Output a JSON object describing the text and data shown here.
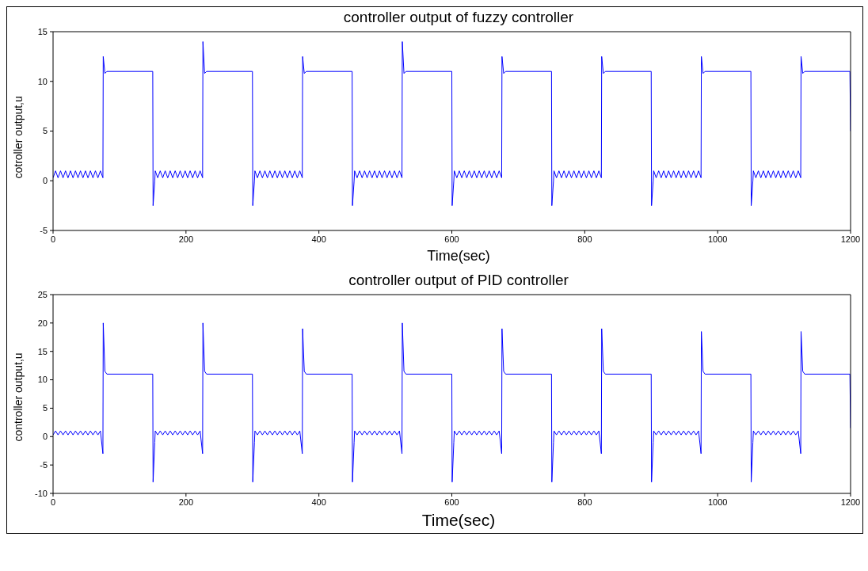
{
  "chart_data": [
    {
      "type": "line",
      "title": "controller output of fuzzy controller",
      "xlabel": "Time(sec)",
      "ylabel": "cotroller output,u",
      "xlim": [
        0,
        1200
      ],
      "xticks": [
        0,
        200,
        400,
        600,
        800,
        1000,
        1200
      ],
      "ylim": [
        -5,
        15
      ],
      "yticks": [
        -5,
        0,
        5,
        10,
        15
      ],
      "x": [
        0,
        3.75,
        7.5,
        11.25,
        15,
        18.75,
        22.5,
        26.25,
        30,
        33.75,
        37.5,
        41.25,
        45,
        48.75,
        52.5,
        56.25,
        60,
        63.75,
        67.5,
        71.25,
        75,
        75.5,
        78,
        81,
        150,
        150.5,
        153,
        153.75,
        157.5,
        161.25,
        165,
        168.75,
        172.5,
        176.25,
        180,
        183.75,
        187.5,
        191.25,
        195,
        198.75,
        202.5,
        206.25,
        210,
        213.75,
        217.5,
        221.25,
        225,
        225.5,
        228,
        231,
        300,
        300.5,
        303,
        303.75,
        307.5,
        311.25,
        315,
        318.75,
        322.5,
        326.25,
        330,
        333.75,
        337.5,
        341.25,
        345,
        348.75,
        352.5,
        356.25,
        360,
        363.75,
        367.5,
        371.25,
        375,
        375.5,
        378,
        381,
        450,
        450.5,
        453,
        453.75,
        457.5,
        461.25,
        465,
        468.75,
        472.5,
        476.25,
        480,
        483.75,
        487.5,
        491.25,
        495,
        498.75,
        502.5,
        506.25,
        510,
        513.75,
        517.5,
        521.25,
        525,
        525.5,
        528,
        531,
        600,
        600.5,
        603,
        603.75,
        607.5,
        611.25,
        615,
        618.75,
        622.5,
        626.25,
        630,
        633.75,
        637.5,
        641.25,
        645,
        648.75,
        652.5,
        656.25,
        660,
        663.75,
        667.5,
        671.25,
        675,
        675.5,
        678,
        681,
        750,
        750.5,
        753,
        753.75,
        757.5,
        761.25,
        765,
        768.75,
        772.5,
        776.25,
        780,
        783.75,
        787.5,
        791.25,
        795,
        798.75,
        802.5,
        806.25,
        810,
        813.75,
        817.5,
        821.25,
        825,
        825.5,
        828,
        831,
        900,
        900.5,
        903,
        903.75,
        907.5,
        911.25,
        915,
        918.75,
        922.5,
        926.25,
        930,
        933.75,
        937.5,
        941.25,
        945,
        948.75,
        952.5,
        956.25,
        960,
        963.75,
        967.5,
        971.25,
        975,
        975.5,
        978,
        981,
        1050,
        1050.5,
        1053,
        1053.75,
        1057.5,
        1061.25,
        1065,
        1068.75,
        1072.5,
        1076.25,
        1080,
        1083.75,
        1087.5,
        1091.25,
        1095,
        1098.75,
        1102.5,
        1106.25,
        1110,
        1113.75,
        1117.5,
        1121.25,
        1125,
        1125.5,
        1128,
        1131,
        1199,
        1200
      ],
      "series": [
        {
          "color": "#0000ff",
          "values": [
            0.3,
            1,
            0.3,
            1,
            0.3,
            1,
            0.3,
            1,
            0.3,
            1,
            0.3,
            1,
            0.3,
            1,
            0.3,
            1,
            0.3,
            1,
            0.3,
            1,
            0.3,
            12.5,
            10.8,
            11,
            11,
            -2.5,
            0,
            1,
            0.3,
            1,
            0.3,
            1,
            0.3,
            1,
            0.3,
            1,
            0.3,
            1,
            0.3,
            1,
            0.3,
            1,
            0.3,
            1,
            0.3,
            1,
            0.3,
            14,
            10.8,
            11,
            11,
            -2.5,
            0,
            1,
            0.3,
            1,
            0.3,
            1,
            0.3,
            1,
            0.3,
            1,
            0.3,
            1,
            0.3,
            1,
            0.3,
            1,
            0.3,
            1,
            0.3,
            1,
            0.3,
            12.5,
            10.8,
            11,
            11,
            -2.5,
            0,
            1,
            0.3,
            1,
            0.3,
            1,
            0.3,
            1,
            0.3,
            1,
            0.3,
            1,
            0.3,
            1,
            0.3,
            1,
            0.3,
            1,
            0.3,
            1,
            0.3,
            14,
            10.8,
            11,
            11,
            -2.5,
            0,
            1,
            0.3,
            1,
            0.3,
            1,
            0.3,
            1,
            0.3,
            1,
            0.3,
            1,
            0.3,
            1,
            0.3,
            1,
            0.3,
            1,
            0.3,
            1,
            0.3,
            12.5,
            10.8,
            11,
            11,
            -2.5,
            0,
            1,
            0.3,
            1,
            0.3,
            1,
            0.3,
            1,
            0.3,
            1,
            0.3,
            1,
            0.3,
            1,
            0.3,
            1,
            0.3,
            1,
            0.3,
            1,
            0.3,
            12.5,
            10.8,
            11,
            11,
            -2.5,
            0,
            1,
            0.3,
            1,
            0.3,
            1,
            0.3,
            1,
            0.3,
            1,
            0.3,
            1,
            0.3,
            1,
            0.3,
            1,
            0.3,
            1,
            0.3,
            1,
            0.3,
            12.5,
            10.8,
            11,
            11,
            -2.5,
            0,
            1,
            0.3,
            1,
            0.3,
            1,
            0.3,
            1,
            0.3,
            1,
            0.3,
            1,
            0.3,
            1,
            0.3,
            1,
            0.3,
            1,
            0.3,
            1,
            0.3,
            12.5,
            10.8,
            11,
            11,
            5
          ]
        }
      ]
    },
    {
      "type": "line",
      "title": "controller output of PID controller",
      "xlabel": "Time(sec)",
      "ylabel": "controller output,u",
      "xlim": [
        0,
        1200
      ],
      "xticks": [
        0,
        200,
        400,
        600,
        800,
        1000,
        1200
      ],
      "ylim": [
        -10,
        25
      ],
      "yticks": [
        -10,
        -5,
        0,
        5,
        10,
        15,
        20,
        25
      ],
      "x": [
        0,
        3.75,
        7.5,
        11.25,
        15,
        18.75,
        22.5,
        26.25,
        30,
        33.75,
        37.5,
        41.25,
        45,
        48.75,
        52.5,
        56.25,
        60,
        63.75,
        67.5,
        71.25,
        75,
        75.5,
        78,
        81,
        150,
        150.5,
        153,
        153.75,
        157.5,
        161.25,
        165,
        168.75,
        172.5,
        176.25,
        180,
        183.75,
        187.5,
        191.25,
        195,
        198.75,
        202.5,
        206.25,
        210,
        213.75,
        217.5,
        221.25,
        225,
        225.5,
        228,
        231,
        300,
        300.5,
        303,
        303.75,
        307.5,
        311.25,
        315,
        318.75,
        322.5,
        326.25,
        330,
        333.75,
        337.5,
        341.25,
        345,
        348.75,
        352.5,
        356.25,
        360,
        363.75,
        367.5,
        371.25,
        375,
        375.5,
        378,
        381,
        450,
        450.5,
        453,
        453.75,
        457.5,
        461.25,
        465,
        468.75,
        472.5,
        476.25,
        480,
        483.75,
        487.5,
        491.25,
        495,
        498.75,
        502.5,
        506.25,
        510,
        513.75,
        517.5,
        521.25,
        525,
        525.5,
        528,
        531,
        600,
        600.5,
        603,
        603.75,
        607.5,
        611.25,
        615,
        618.75,
        622.5,
        626.25,
        630,
        633.75,
        637.5,
        641.25,
        645,
        648.75,
        652.5,
        656.25,
        660,
        663.75,
        667.5,
        671.25,
        675,
        675.5,
        678,
        681,
        750,
        750.5,
        753,
        753.75,
        757.5,
        761.25,
        765,
        768.75,
        772.5,
        776.25,
        780,
        783.75,
        787.5,
        791.25,
        795,
        798.75,
        802.5,
        806.25,
        810,
        813.75,
        817.5,
        821.25,
        825,
        825.5,
        828,
        831,
        900,
        900.5,
        903,
        903.75,
        907.5,
        911.25,
        915,
        918.75,
        922.5,
        926.25,
        930,
        933.75,
        937.5,
        941.25,
        945,
        948.75,
        952.5,
        956.25,
        960,
        963.75,
        967.5,
        971.25,
        975,
        975.5,
        978,
        981,
        1050,
        1050.5,
        1053,
        1053.75,
        1057.5,
        1061.25,
        1065,
        1068.75,
        1072.5,
        1076.25,
        1080,
        1083.75,
        1087.5,
        1091.25,
        1095,
        1098.75,
        1102.5,
        1106.25,
        1110,
        1113.75,
        1117.5,
        1121.25,
        1125,
        1125.5,
        1128,
        1131,
        1199,
        1200
      ],
      "series": [
        {
          "color": "#0000ff",
          "values": [
            0.3,
            1,
            0.3,
            1,
            0.3,
            1,
            0.3,
            1,
            0.3,
            1,
            0.3,
            1,
            0.3,
            1,
            0.3,
            1,
            0.3,
            1,
            0.3,
            1,
            -3,
            20,
            11.5,
            11,
            11,
            -8,
            -1,
            1,
            0.3,
            1,
            0.3,
            1,
            0.3,
            1,
            0.3,
            1,
            0.3,
            1,
            0.3,
            1,
            0.3,
            1,
            0.3,
            1,
            0.3,
            1,
            -3,
            20,
            11.5,
            11,
            11,
            -8,
            -1,
            1,
            0.3,
            1,
            0.3,
            1,
            0.3,
            1,
            0.3,
            1,
            0.3,
            1,
            0.3,
            1,
            0.3,
            1,
            0.3,
            1,
            0.3,
            1,
            -3,
            19,
            11.5,
            11,
            11,
            -8,
            -1,
            1,
            0.3,
            1,
            0.3,
            1,
            0.3,
            1,
            0.3,
            1,
            0.3,
            1,
            0.3,
            1,
            0.3,
            1,
            0.3,
            1,
            0.3,
            1,
            -3,
            20,
            11.5,
            11,
            11,
            -8,
            -1,
            1,
            0.3,
            1,
            0.3,
            1,
            0.3,
            1,
            0.3,
            1,
            0.3,
            1,
            0.3,
            1,
            0.3,
            1,
            0.3,
            1,
            0.3,
            1,
            -3,
            19,
            11.5,
            11,
            11,
            -8,
            -1,
            1,
            0.3,
            1,
            0.3,
            1,
            0.3,
            1,
            0.3,
            1,
            0.3,
            1,
            0.3,
            1,
            0.3,
            1,
            0.3,
            1,
            0.3,
            1,
            -3,
            19,
            11.5,
            11,
            11,
            -8,
            -1,
            1,
            0.3,
            1,
            0.3,
            1,
            0.3,
            1,
            0.3,
            1,
            0.3,
            1,
            0.3,
            1,
            0.3,
            1,
            0.3,
            1,
            0.3,
            1,
            -3,
            18.5,
            11.5,
            11,
            11,
            -8,
            -1,
            1,
            0.3,
            1,
            0.3,
            1,
            0.3,
            1,
            0.3,
            1,
            0.3,
            1,
            0.3,
            1,
            0.3,
            1,
            0.3,
            1,
            0.3,
            1,
            -3,
            18.5,
            11.5,
            11,
            11,
            1.5
          ]
        }
      ]
    }
  ]
}
